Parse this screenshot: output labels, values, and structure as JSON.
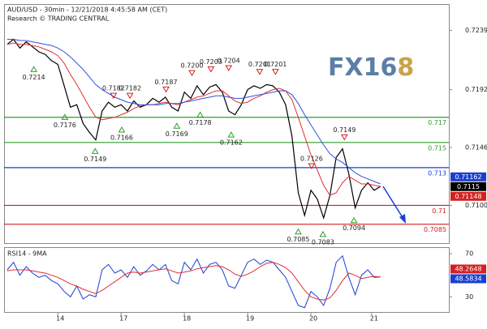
{
  "chart_data": [
    {
      "type": "line",
      "title": "AUD/USD - 30min - 12/21/2018 4:45:58 AM (CET)",
      "subtitle": "Research © TRADING CENTRAL",
      "logo_main": "FX16",
      "logo_accent": "8",
      "x": [
        0,
        1,
        2,
        3,
        4,
        5,
        6,
        7,
        8,
        9,
        10,
        11,
        12,
        13,
        14,
        15,
        16,
        17,
        18,
        19,
        20,
        21,
        22,
        23,
        24,
        25,
        26,
        27,
        28,
        29,
        30,
        31,
        32,
        33,
        34,
        35,
        36,
        37,
        38,
        39,
        40,
        41,
        42,
        43,
        44,
        45,
        46,
        47,
        48,
        49,
        50,
        51,
        52,
        53,
        54,
        55,
        56,
        57,
        58,
        59
      ],
      "xlim": [
        -0.5,
        69.8
      ],
      "xticks": [
        {
          "value": 8,
          "label": "14"
        },
        {
          "value": 18,
          "label": "17"
        },
        {
          "value": 28,
          "label": "18"
        },
        {
          "value": 38,
          "label": "19"
        },
        {
          "value": 48,
          "label": "20"
        },
        {
          "value": 57.6,
          "label": "21"
        }
      ],
      "ylim": [
        0.707,
        0.726
      ],
      "yticks": [
        0.7239,
        0.7192,
        0.7146,
        {
          "value": 0.71,
          "label": "0.7100"
        }
      ],
      "series": [
        {
          "color": "#000000",
          "values": [
            0.7228,
            0.7232,
            0.7225,
            0.723,
            0.7226,
            0.7222,
            0.722,
            0.7215,
            0.7212,
            0.7195,
            0.7178,
            0.718,
            0.7165,
            0.7158,
            0.7152,
            0.7175,
            0.7182,
            0.7178,
            0.718,
            0.7175,
            0.7183,
            0.7178,
            0.718,
            0.7185,
            0.7182,
            0.7186,
            0.7178,
            0.7175,
            0.719,
            0.7185,
            0.7195,
            0.7188,
            0.7194,
            0.7196,
            0.719,
            0.7175,
            0.7172,
            0.718,
            0.7192,
            0.7195,
            0.7193,
            0.7196,
            0.7195,
            0.719,
            0.718,
            0.7155,
            0.711,
            0.7092,
            0.7112,
            0.7105,
            0.709,
            0.7108,
            0.7138,
            0.7145,
            0.7125,
            0.7098,
            0.7112,
            0.7118,
            0.7112,
            0.7115
          ]
        },
        {
          "color": "#e03030",
          "values": [
            0.7228,
            0.7229,
            0.7228,
            0.7228,
            0.7227,
            0.7226,
            0.7224,
            0.7222,
            0.7219,
            0.7213,
            0.7204,
            0.7196,
            0.7187,
            0.7178,
            0.717,
            0.7168,
            0.7169,
            0.717,
            0.7172,
            0.7174,
            0.7177,
            0.7179,
            0.718,
            0.718,
            0.7181,
            0.7182,
            0.7181,
            0.718,
            0.7182,
            0.7184,
            0.7186,
            0.7187,
            0.7189,
            0.7191,
            0.7191,
            0.7187,
            0.7183,
            0.7181,
            0.7182,
            0.7185,
            0.7187,
            0.719,
            0.7192,
            0.7193,
            0.7191,
            0.7184,
            0.717,
            0.7155,
            0.714,
            0.7128,
            0.7116,
            0.7108,
            0.711,
            0.7118,
            0.7123,
            0.712,
            0.7117,
            0.7117,
            0.7116,
            0.7115
          ]
        },
        {
          "color": "#3050e0",
          "values": [
            0.7232,
            0.7232,
            0.7231,
            0.7231,
            0.723,
            0.7229,
            0.7228,
            0.7227,
            0.7225,
            0.7222,
            0.7218,
            0.7213,
            0.7208,
            0.7202,
            0.7196,
            0.7192,
            0.7189,
            0.7186,
            0.7184,
            0.7182,
            0.7181,
            0.718,
            0.718,
            0.718,
            0.718,
            0.7181,
            0.7181,
            0.7181,
            0.7182,
            0.7183,
            0.7184,
            0.7185,
            0.7186,
            0.7187,
            0.7187,
            0.7186,
            0.7185,
            0.7185,
            0.7186,
            0.7187,
            0.7188,
            0.7189,
            0.719,
            0.7191,
            0.7191,
            0.7188,
            0.7181,
            0.7172,
            0.7164,
            0.7156,
            0.7148,
            0.7141,
            0.7137,
            0.7134,
            0.713,
            0.7126,
            0.7123,
            0.7121,
            0.7119,
            0.7117
          ]
        }
      ],
      "levels": [
        {
          "value": 0.717,
          "color": "#2e9e2e"
        },
        {
          "value": 0.715,
          "color": "#2e9e2e"
        },
        {
          "value": 0.713,
          "color": "#1a3fd1"
        },
        {
          "value": 0.71,
          "color": "#d42020"
        },
        {
          "value": 0.7085,
          "color": "#d42020"
        }
      ],
      "peaks": {
        "color": "#d42020",
        "x": [
          16.8,
          19.4,
          25.1,
          29.2,
          32.2,
          35.0,
          39.9,
          42.4,
          48.1,
          53.3
        ],
        "values": [
          0.7182,
          0.7182,
          0.7187,
          0.72,
          0.7203,
          0.7204,
          0.7201,
          0.7201,
          0.7126,
          0.7149
        ],
        "value_labels": [
          "0.7182",
          "0.7182",
          "0.7187",
          "0.7200",
          "0.7203",
          "0.7204",
          "0.7201",
          "0.7201",
          "0.7126",
          "0.7149"
        ]
      },
      "troughs": {
        "color": "#2e9e2e",
        "x": [
          4.2,
          9.1,
          13.9,
          18.1,
          26.8,
          30.5,
          35.4,
          46.0,
          49.9,
          54.8
        ],
        "values": [
          0.7214,
          0.7176,
          0.7149,
          0.7166,
          0.7169,
          0.7178,
          0.7162,
          0.7085,
          0.7083,
          0.7094
        ]
      },
      "price_tags": [
        {
          "value": 0.71162,
          "color": "#1a3fd1"
        },
        {
          "value": 0.7115,
          "color": "#000000"
        },
        {
          "value": 0.71148,
          "color": "#d42020"
        }
      ]
    },
    {
      "type": "line",
      "title": "RSI14 - 9MA",
      "x": [
        0,
        1,
        2,
        3,
        4,
        5,
        6,
        7,
        8,
        9,
        10,
        11,
        12,
        13,
        14,
        15,
        16,
        17,
        18,
        19,
        20,
        21,
        22,
        23,
        24,
        25,
        26,
        27,
        28,
        29,
        30,
        31,
        32,
        33,
        34,
        35,
        36,
        37,
        38,
        39,
        40,
        41,
        42,
        43,
        44,
        45,
        46,
        47,
        48,
        49,
        50,
        51,
        52,
        53,
        54,
        55,
        56,
        57,
        58,
        59
      ],
      "xlim": [
        -0.5,
        69.8
      ],
      "ylim": [
        16,
        76
      ],
      "yticks": [
        70,
        30
      ],
      "series": [
        {
          "color": "#1a3fd1",
          "values": [
            55,
            62,
            50,
            58,
            52,
            48,
            50,
            45,
            42,
            35,
            30,
            40,
            28,
            32,
            30,
            55,
            60,
            52,
            55,
            48,
            58,
            50,
            54,
            60,
            55,
            60,
            45,
            42,
            62,
            55,
            65,
            52,
            60,
            62,
            55,
            40,
            38,
            50,
            62,
            65,
            60,
            64,
            62,
            55,
            48,
            35,
            22,
            20,
            35,
            30,
            22,
            38,
            62,
            68,
            48,
            32,
            50,
            55,
            48,
            48.58
          ]
        },
        {
          "color": "#e03030",
          "values": [
            54,
            55,
            55,
            55,
            54,
            53,
            52,
            50,
            48,
            45,
            42,
            40,
            37,
            35,
            33,
            36,
            40,
            44,
            48,
            52,
            53,
            52,
            53,
            54,
            55,
            56,
            54,
            52,
            53,
            54,
            56,
            57,
            58,
            59,
            58,
            55,
            51,
            49,
            51,
            54,
            58,
            61,
            62,
            60,
            57,
            52,
            44,
            36,
            30,
            28,
            27,
            29,
            36,
            45,
            52,
            50,
            47,
            48,
            49,
            48.26
          ]
        }
      ],
      "price_tags": [
        {
          "value": 48.2648,
          "color": "#d42020"
        },
        {
          "value": 48.5834,
          "color": "#1a3fd1"
        }
      ]
    }
  ]
}
